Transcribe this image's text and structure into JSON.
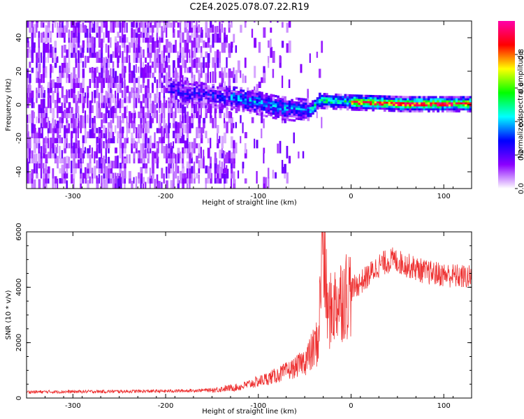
{
  "title": "C2E4.2025.078.07.22.R19",
  "chart_data": [
    {
      "type": "heatmap",
      "title": "C2E4.2025.078.07.22.R19",
      "xlabel": "Height of straight line (km)",
      "ylabel": "Frequency (Hz)",
      "xlim": [
        -350,
        130
      ],
      "ylim": [
        -50,
        50
      ],
      "xticks": [
        -300,
        -200,
        -100,
        0,
        100
      ],
      "yticks": [
        -40,
        -20,
        0,
        20,
        40
      ],
      "colorbar": {
        "label": "Normalized spectral amplitude",
        "range": [
          0.0,
          1.0
        ],
        "ticks": [
          0.0,
          0.2,
          0.4,
          0.6,
          0.8
        ],
        "tick_labels": [
          "0.0",
          "0.2",
          "0.4",
          "0.6",
          "0.8"
        ],
        "colormap": [
          "#ffffff",
          "#8b00ff",
          "#0000ff",
          "#00ffff",
          "#00ff00",
          "#ffff00",
          "#ff0000",
          "#ff00aa"
        ]
      },
      "signal_track": [
        {
          "x": -195,
          "y": 8
        },
        {
          "x": -150,
          "y": 5
        },
        {
          "x": -120,
          "y": 3
        },
        {
          "x": -80,
          "y": -2
        },
        {
          "x": -45,
          "y": -4
        },
        {
          "x": -35,
          "y": 2
        },
        {
          "x": 0,
          "y": 1
        },
        {
          "x": 60,
          "y": 0
        },
        {
          "x": 130,
          "y": 0
        }
      ]
    },
    {
      "type": "line",
      "xlabel": "Height of straight line (km)",
      "ylabel": "SNR (10 * v/v)",
      "xlim": [
        -350,
        130
      ],
      "ylim": [
        0,
        6000
      ],
      "xticks": [
        -300,
        -200,
        -100,
        0,
        100
      ],
      "yticks": [
        0,
        2000,
        4000,
        6000
      ],
      "color": "#ee3333",
      "series": [
        {
          "name": "SNR",
          "x": [
            -350,
            -300,
            -250,
            -200,
            -170,
            -150,
            -120,
            -100,
            -80,
            -60,
            -45,
            -35,
            -31,
            -25,
            -15,
            0,
            15,
            30,
            45,
            60,
            80,
            100,
            130
          ],
          "y": [
            220,
            230,
            240,
            250,
            270,
            290,
            400,
            600,
            820,
            1100,
            1500,
            2100,
            6000,
            3000,
            3500,
            3900,
            4300,
            4800,
            5000,
            4800,
            4550,
            4450,
            4350
          ]
        }
      ]
    }
  ]
}
